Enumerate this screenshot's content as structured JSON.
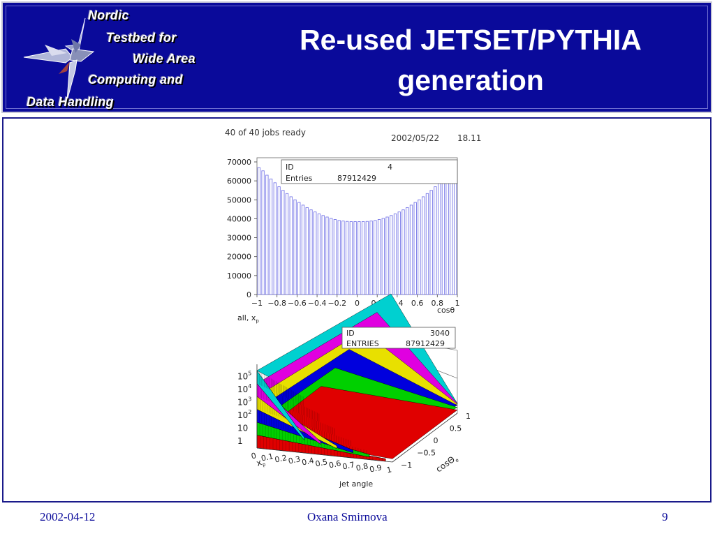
{
  "header": {
    "logo_lines": [
      "Nordic",
      "Testbed for",
      "Wide Area",
      "Computing and",
      "Data Handling"
    ],
    "title_line1": "Re-used JETSET/PYTHIA",
    "title_line2": "generation"
  },
  "plot1": {
    "status": "40 of 40 jobs ready",
    "date": "2002/05/22",
    "time": "18.11",
    "stats": {
      "id_label": "ID",
      "id_value": "4",
      "entries_label": "Entries",
      "entries_value": "87912429"
    },
    "x_unit": "cosθ",
    "caption": "all, x",
    "caption_sub": "p"
  },
  "plot2": {
    "stats": {
      "id_label": "ID",
      "id_value": "3040",
      "entries_label": "ENTRIES",
      "entries_value": "87912429"
    },
    "z_ticks": [
      {
        "base": "1",
        "exp": ""
      },
      {
        "base": "10",
        "exp": ""
      },
      {
        "base": "10",
        "exp": "2"
      },
      {
        "base": "10",
        "exp": "3"
      },
      {
        "base": "10",
        "exp": "4"
      },
      {
        "base": "10",
        "exp": "5"
      }
    ],
    "x_ticks": [
      "0",
      "0.1",
      "0.2",
      "0.3",
      "0.4",
      "0.5",
      "0.6",
      "0.7",
      "0.8",
      "0.9",
      "1"
    ],
    "x_label": "x",
    "x_label_sub": "p",
    "y_ticks": [
      "-1",
      "-0.5",
      "0",
      "0.5",
      "1"
    ],
    "y_label": "cosΘ",
    "y_label_sub": "e",
    "caption": "jet angle",
    "bands": [
      {
        "color": "#e00000"
      },
      {
        "color": "#00d000"
      },
      {
        "color": "#0000dd"
      },
      {
        "color": "#e8e000"
      },
      {
        "color": "#e000e0"
      },
      {
        "color": "#00d0d0"
      }
    ]
  },
  "chart_data": {
    "type": "bar",
    "x": [
      -0.98,
      -0.94,
      -0.9,
      -0.86,
      -0.82,
      -0.78,
      -0.74,
      -0.7,
      -0.66,
      -0.62,
      -0.58,
      -0.54,
      -0.5,
      -0.46,
      -0.42,
      -0.38,
      -0.34,
      -0.3,
      -0.26,
      -0.22,
      -0.18,
      -0.14,
      -0.1,
      -0.06,
      -0.02,
      0.02,
      0.06,
      0.1,
      0.14,
      0.18,
      0.22,
      0.26,
      0.3,
      0.34,
      0.38,
      0.42,
      0.46,
      0.5,
      0.54,
      0.58,
      0.62,
      0.66,
      0.7,
      0.74,
      0.78,
      0.82,
      0.86,
      0.9,
      0.94,
      0.98
    ],
    "values": [
      67000,
      65300,
      63000,
      61000,
      59000,
      56900,
      55000,
      53300,
      51600,
      50000,
      48600,
      47200,
      45900,
      44700,
      43600,
      42600,
      41700,
      40900,
      40200,
      39600,
      39100,
      38800,
      38600,
      38500,
      38500,
      38500,
      38500,
      38600,
      38800,
      39100,
      39600,
      40200,
      40900,
      41700,
      42600,
      43600,
      44700,
      45900,
      47200,
      48600,
      50000,
      51600,
      53300,
      55000,
      56900,
      59000,
      61000,
      63000,
      65300,
      67000
    ],
    "xlim": [
      -1,
      1
    ],
    "ylim": [
      0,
      70000
    ],
    "x_ticks": [
      "-1",
      "-0.8",
      "-0.6",
      "-0.4",
      "-0.2",
      "0",
      "0.2",
      "0.4",
      "0.6",
      "0.8",
      "1"
    ],
    "y_ticks": [
      "0",
      "10000",
      "20000",
      "30000",
      "40000",
      "50000",
      "60000",
      "70000"
    ],
    "xlabel": "cosθ",
    "ylabel": "",
    "title": ""
  },
  "footer": {
    "date": "2002-04-12",
    "author": "Oxana Smirnova",
    "page": "9"
  }
}
